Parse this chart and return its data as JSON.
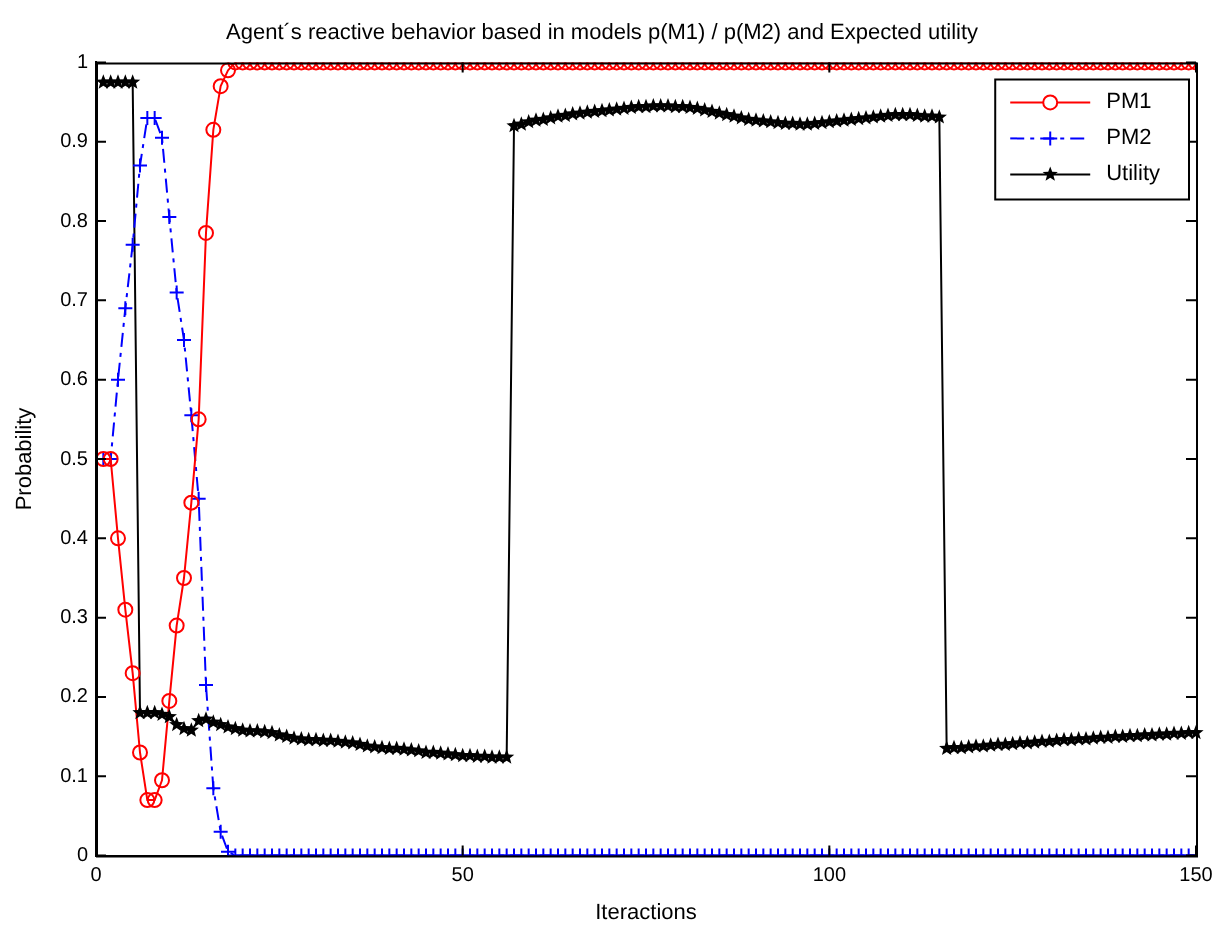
{
  "chart_data": {
    "type": "line",
    "title": "Agent´s reactive behavior based in models p(M1) / p(M2) and Expected utility",
    "xlabel": "Iteractions",
    "ylabel": "Probability",
    "x": [
      1,
      2,
      3,
      4,
      5,
      6,
      7,
      8,
      9,
      10,
      11,
      12,
      13,
      14,
      15,
      16,
      17,
      18,
      19,
      20,
      21,
      22,
      23,
      24,
      25,
      26,
      27,
      28,
      29,
      30,
      31,
      32,
      33,
      34,
      35,
      36,
      37,
      38,
      39,
      40,
      41,
      42,
      43,
      44,
      45,
      46,
      47,
      48,
      49,
      50,
      51,
      52,
      53,
      54,
      55,
      56,
      57,
      58,
      59,
      60,
      61,
      62,
      63,
      64,
      65,
      66,
      67,
      68,
      69,
      70,
      71,
      72,
      73,
      74,
      75,
      76,
      77,
      78,
      79,
      80,
      81,
      82,
      83,
      84,
      85,
      86,
      87,
      88,
      89,
      90,
      91,
      92,
      93,
      94,
      95,
      96,
      97,
      98,
      99,
      100,
      101,
      102,
      103,
      104,
      105,
      106,
      107,
      108,
      109,
      110,
      111,
      112,
      113,
      114,
      115,
      116,
      117,
      118,
      119,
      120,
      121,
      122,
      123,
      124,
      125,
      126,
      127,
      128,
      129,
      130,
      131,
      132,
      133,
      134,
      135,
      136,
      137,
      138,
      139,
      140,
      141,
      142,
      143,
      144,
      145,
      146,
      147,
      148,
      149,
      150
    ],
    "series": [
      {
        "name": "PM1",
        "color": "#ff0000",
        "marker": "circle",
        "line_style": "solid",
        "values": [
          0.5,
          0.5,
          0.4,
          0.31,
          0.23,
          0.13,
          0.07,
          0.07,
          0.095,
          0.195,
          0.29,
          0.35,
          0.445,
          0.55,
          0.785,
          0.915,
          0.97,
          0.99,
          1,
          1,
          1,
          1,
          1,
          1,
          1,
          1,
          1,
          1,
          1,
          1,
          1,
          1,
          1,
          1,
          1,
          1,
          1,
          1,
          1,
          1,
          1,
          1,
          1,
          1,
          1,
          1,
          1,
          1,
          1,
          1,
          1,
          1,
          1,
          1,
          1,
          1,
          1,
          1,
          1,
          1,
          1,
          1,
          1,
          1,
          1,
          1,
          1,
          1,
          1,
          1,
          1,
          1,
          1,
          1,
          1,
          1,
          1,
          1,
          1,
          1,
          1,
          1,
          1,
          1,
          1,
          1,
          1,
          1,
          1,
          1,
          1,
          1,
          1,
          1,
          1,
          1,
          1,
          1,
          1,
          1,
          1,
          1,
          1,
          1,
          1,
          1,
          1,
          1,
          1,
          1,
          1,
          1,
          1,
          1,
          1,
          1,
          1,
          1,
          1,
          1,
          1,
          1,
          1,
          1,
          1,
          1,
          1,
          1,
          1,
          1,
          1,
          1,
          1,
          1,
          1,
          1,
          1,
          1,
          1,
          1,
          1,
          1,
          1,
          1,
          1,
          1,
          1,
          1,
          1,
          1
        ]
      },
      {
        "name": "PM2",
        "color": "#0000ff",
        "marker": "cross",
        "line_style": "dashed",
        "values": [
          0.5,
          0.5,
          0.6,
          0.69,
          0.77,
          0.87,
          0.93,
          0.93,
          0.905,
          0.805,
          0.71,
          0.65,
          0.555,
          0.45,
          0.215,
          0.085,
          0.03,
          0.005,
          0,
          0,
          0,
          0,
          0,
          0,
          0,
          0,
          0,
          0,
          0,
          0,
          0,
          0,
          0,
          0,
          0,
          0,
          0,
          0,
          0,
          0,
          0,
          0,
          0,
          0,
          0,
          0,
          0,
          0,
          0,
          0,
          0,
          0,
          0,
          0,
          0,
          0,
          0,
          0,
          0,
          0,
          0,
          0,
          0,
          0,
          0,
          0,
          0,
          0,
          0,
          0,
          0,
          0,
          0,
          0,
          0,
          0,
          0,
          0,
          0,
          0,
          0,
          0,
          0,
          0,
          0,
          0,
          0,
          0,
          0,
          0,
          0,
          0,
          0,
          0,
          0,
          0,
          0,
          0,
          0,
          0,
          0,
          0,
          0,
          0,
          0,
          0,
          0,
          0,
          0,
          0,
          0,
          0,
          0,
          0,
          0,
          0,
          0,
          0,
          0,
          0,
          0,
          0,
          0,
          0,
          0,
          0,
          0,
          0,
          0,
          0,
          0,
          0,
          0,
          0,
          0,
          0,
          0,
          0,
          0,
          0,
          0,
          0,
          0,
          0,
          0,
          0,
          0,
          0,
          0,
          0
        ]
      },
      {
        "name": "Utility",
        "color": "#000000",
        "marker": "star",
        "line_style": "solid",
        "values": [
          0.975,
          0.975,
          0.975,
          0.975,
          0.975,
          0.18,
          0.18,
          0.18,
          0.178,
          0.175,
          0.165,
          0.16,
          0.158,
          0.17,
          0.172,
          0.168,
          0.165,
          0.162,
          0.16,
          0.158,
          0.157,
          0.157,
          0.156,
          0.155,
          0.152,
          0.15,
          0.148,
          0.147,
          0.146,
          0.146,
          0.145,
          0.145,
          0.144,
          0.143,
          0.142,
          0.14,
          0.138,
          0.137,
          0.136,
          0.135,
          0.135,
          0.134,
          0.133,
          0.132,
          0.13,
          0.13,
          0.129,
          0.128,
          0.127,
          0.126,
          0.126,
          0.125,
          0.125,
          0.124,
          0.124,
          0.124,
          0.92,
          0.922,
          0.925,
          0.927,
          0.928,
          0.93,
          0.932,
          0.933,
          0.935,
          0.936,
          0.937,
          0.938,
          0.939,
          0.94,
          0.941,
          0.942,
          0.943,
          0.944,
          0.944,
          0.945,
          0.945,
          0.945,
          0.944,
          0.944,
          0.943,
          0.942,
          0.94,
          0.938,
          0.936,
          0.934,
          0.932,
          0.93,
          0.928,
          0.927,
          0.926,
          0.925,
          0.924,
          0.923,
          0.923,
          0.922,
          0.922,
          0.923,
          0.924,
          0.925,
          0.926,
          0.927,
          0.928,
          0.929,
          0.93,
          0.931,
          0.932,
          0.933,
          0.934,
          0.934,
          0.934,
          0.933,
          0.932,
          0.932,
          0.931,
          0.135,
          0.136,
          0.136,
          0.137,
          0.138,
          0.138,
          0.139,
          0.14,
          0.14,
          0.141,
          0.142,
          0.142,
          0.143,
          0.144,
          0.144,
          0.145,
          0.146,
          0.146,
          0.147,
          0.147,
          0.148,
          0.149,
          0.149,
          0.15,
          0.15,
          0.151,
          0.151,
          0.152,
          0.152,
          0.153,
          0.153,
          0.154,
          0.154,
          0.155,
          0.155
        ]
      }
    ],
    "xlim": [
      0,
      150
    ],
    "xticks": [
      0,
      50,
      100,
      150
    ],
    "ylim": [
      0,
      1
    ],
    "yticks": [
      0,
      0.1,
      0.2,
      0.3,
      0.4,
      0.5,
      0.6,
      0.7,
      0.8,
      0.9,
      1
    ],
    "grid": false,
    "legend": "top right"
  }
}
